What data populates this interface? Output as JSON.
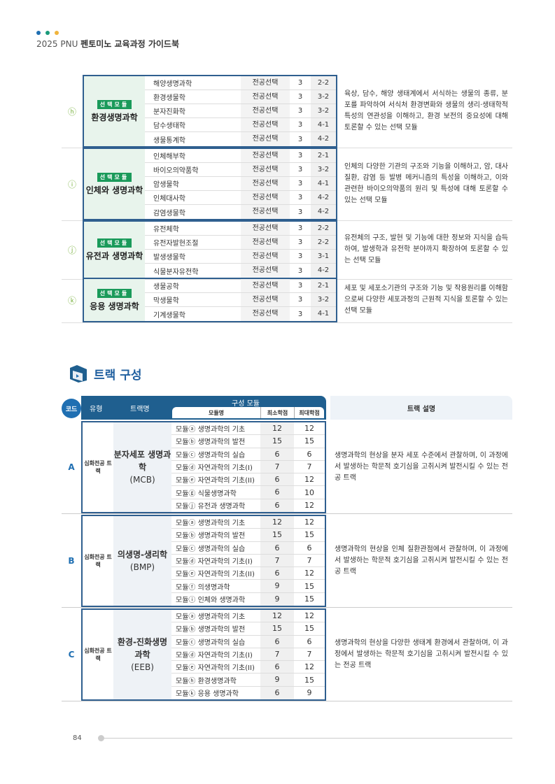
{
  "header": {
    "dots": [
      "#1f6fb2",
      "#1a9a7a",
      "#f0b43c"
    ],
    "prefix": "2025 PNU ",
    "title": "펜토미노 교육과정 가이드북"
  },
  "modules": [
    {
      "letter": "ⓗ",
      "badge": "선택모듈",
      "name": "환경생명과학",
      "courses": [
        [
          "해양생명과학",
          "전공선택",
          "3",
          "2-2"
        ],
        [
          "환경생물학",
          "전공선택",
          "3",
          "3-2"
        ],
        [
          "분자진화학",
          "전공선택",
          "3",
          "3-2"
        ],
        [
          "담수생태학",
          "전공선택",
          "3",
          "4-1"
        ],
        [
          "생물통계학",
          "전공선택",
          "3",
          "4-2"
        ]
      ],
      "desc": "육상, 담수, 해양 생태계에서 서식하는 생물의 종류, 분포를 파악하여 서식처 환경변화와 생물의 생리·생태학적 특성의 연관성을 이해하고, 환경 보전의 중요성에 대해 토론할 수 있는 선택 모듈"
    },
    {
      "letter": "ⓘ",
      "badge": "선택모듈",
      "name": "인체와 생명과학",
      "courses": [
        [
          "인체해부학",
          "전공선택",
          "3",
          "2-1"
        ],
        [
          "바이오의약품학",
          "전공선택",
          "3",
          "3-2"
        ],
        [
          "암생물학",
          "전공선택",
          "3",
          "4-1"
        ],
        [
          "인체대사학",
          "전공선택",
          "3",
          "4-2"
        ],
        [
          "감염생물학",
          "전공선택",
          "3",
          "4-2"
        ]
      ],
      "desc": "인체의 다양한 기관의 구조와 기능을 이해하고, 암, 대사질환, 감염 등 발병 메커니즘의 특성을 이해하고, 이와 관련한 바이오의약품의 원리 및 특성에 대해 토론할 수 있는 선택 모듈"
    },
    {
      "letter": "ⓙ",
      "badge": "선택모듈",
      "name": "유전과 생명과학",
      "courses": [
        [
          "유전체학",
          "전공선택",
          "3",
          "2-2"
        ],
        [
          "유전자발현조절",
          "전공선택",
          "3",
          "2-2"
        ],
        [
          "발생생물학",
          "전공선택",
          "3",
          "3-1"
        ],
        [
          "식물분자유전학",
          "전공선택",
          "3",
          "4-2"
        ]
      ],
      "desc": "유전체의 구조, 발현 및 기능에 대한 정보와 지식을 습득하여, 발생학과 유전학 분야까지 확장하여 토론할 수 있는 선택 모듈"
    },
    {
      "letter": "ⓚ",
      "badge": "선택모듈",
      "name": "응용 생명과학",
      "courses": [
        [
          "생물공학",
          "전공선택",
          "3",
          "2-1"
        ],
        [
          "막생물학",
          "전공선택",
          "3",
          "3-2"
        ],
        [
          "기계생물학",
          "전공선택",
          "3",
          "4-1"
        ]
      ],
      "desc": "세포 및 세포소기관의 구조와 기능 및 작용원리를 이해함으로써 다양한 세포과정의 근원적 지식을 토론할 수 있는 선택 모듈"
    }
  ],
  "section": {
    "title": "트랙 구성"
  },
  "track_header": {
    "code": "코드",
    "type": "유형",
    "track": "트랙명",
    "modules": "구성 모듈",
    "module_name": "모듈명",
    "min": "최소학점",
    "max": "최대학점",
    "desc": "트랙 설명"
  },
  "tracks": [
    {
      "code": "A",
      "type": "심화전공 트랙",
      "name": "분자세포 생명과학",
      "abbr": "(MCB)",
      "modules": [
        [
          "모듈ⓐ 생명과학의 기초",
          "12",
          "12"
        ],
        [
          "모듈ⓑ 생명과학의 발전",
          "15",
          "15"
        ],
        [
          "모듈ⓒ 생명과학의 실습",
          "6",
          "6"
        ],
        [
          "모듈ⓓ 자연과학의 기초(I)",
          "7",
          "7"
        ],
        [
          "모듈ⓔ 자연과학의 기초(II)",
          "6",
          "12"
        ],
        [
          "모듈ⓖ 식물생명과학",
          "6",
          "10"
        ],
        [
          "모듈ⓙ 유전과 생명과학",
          "6",
          "12"
        ]
      ],
      "desc": "생명과학의 현상을 분자 세포 수준에서 관찰하며, 이 과정에서 발생하는 학문적 호기심을 고취시켜 발전시킬 수 있는 전공 트랙"
    },
    {
      "code": "B",
      "type": "심화전공 트랙",
      "name": "의생명-생리학",
      "abbr": "(BMP)",
      "modules": [
        [
          "모듈ⓐ 생명과학의 기초",
          "12",
          "12"
        ],
        [
          "모듈ⓑ 생명과학의 발전",
          "15",
          "15"
        ],
        [
          "모듈ⓒ 생명과학의 실습",
          "6",
          "6"
        ],
        [
          "모듈ⓓ 자연과학의 기초(I)",
          "7",
          "7"
        ],
        [
          "모듈ⓔ 자연과학의 기초(II)",
          "6",
          "12"
        ],
        [
          "모듈ⓕ 의생명과학",
          "9",
          "15"
        ],
        [
          "모듈ⓘ 인체와 생명과학",
          "9",
          "15"
        ]
      ],
      "desc": "생명과학의 현상을 인체 질환관점에서 관찰하며, 이 과정에서 발생하는 학문적 호기심을 고취시켜 발전시킬 수 있는 전공 트랙"
    },
    {
      "code": "C",
      "type": "심화전공 트랙",
      "name": "환경-진화생명 과학",
      "abbr": "(EEB)",
      "modules": [
        [
          "모듈ⓐ 생명과학의 기초",
          "12",
          "12"
        ],
        [
          "모듈ⓑ 생명과학의 발전",
          "15",
          "15"
        ],
        [
          "모듈ⓒ 생명과학의 실습",
          "6",
          "6"
        ],
        [
          "모듈ⓓ 자연과학의 기초(I)",
          "7",
          "7"
        ],
        [
          "모듈ⓔ 자연과학의 기초(II)",
          "6",
          "12"
        ],
        [
          "모듈ⓗ 환경생명과학",
          "9",
          "15"
        ],
        [
          "모듈ⓚ 응용 생명과학",
          "6",
          "9"
        ]
      ],
      "desc": "생명과학의 현상을 다양한 생태계 환경에서 관찰하며, 이 과정에서 발생하는 학문적 호기심을 고취시켜 발전시킬 수 있는 전공 트랙"
    }
  ],
  "footer": {
    "page": "84"
  }
}
